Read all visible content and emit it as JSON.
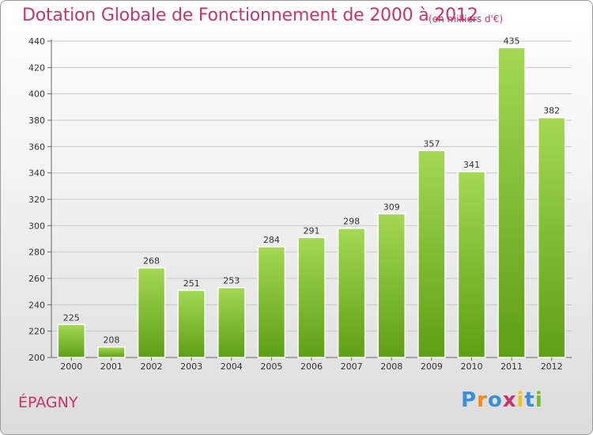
{
  "chart_data": {
    "type": "bar",
    "title": "Dotation Globale de Fonctionnement de 2000 à 2012",
    "unit_label": "(en milliers d'€)",
    "categories": [
      "2000",
      "2001",
      "2002",
      "2003",
      "2004",
      "2005",
      "2006",
      "2007",
      "2008",
      "2009",
      "2010",
      "2011",
      "2012"
    ],
    "values": [
      225,
      208,
      268,
      251,
      253,
      284,
      291,
      298,
      309,
      357,
      341,
      435,
      382
    ],
    "ylim": [
      200,
      440
    ],
    "yticks": [
      200,
      220,
      240,
      260,
      280,
      300,
      320,
      340,
      360,
      380,
      400,
      420,
      440
    ],
    "grid": true,
    "bar_color": "#7ab82e"
  },
  "location": "ÉPAGNY",
  "logo": {
    "letters": [
      "P",
      "r",
      "o",
      "x",
      "i",
      "t",
      "i"
    ],
    "colors": [
      "#3a8fd6",
      "#f08a1c",
      "#3a8fd6",
      "#c8336b",
      "#f0c419",
      "#3a8fd6",
      "#7ab82e"
    ]
  }
}
